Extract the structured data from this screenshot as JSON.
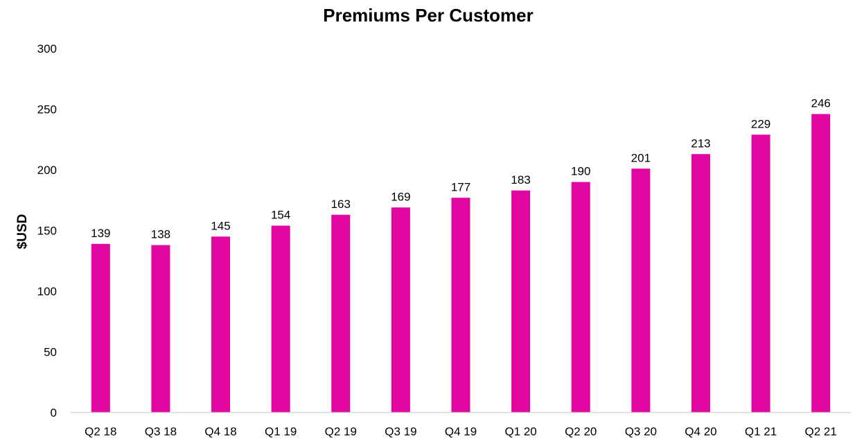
{
  "chart_data": {
    "type": "bar",
    "title": "Premiums Per Customer",
    "xlabel": "",
    "ylabel": "$USD",
    "ylim": [
      0,
      300
    ],
    "yticks": [
      0,
      50,
      100,
      150,
      200,
      250,
      300
    ],
    "grid": false,
    "legend": "none",
    "bar_color": "#E0069F",
    "categories": [
      "Q2 18",
      "Q3 18",
      "Q4 18",
      "Q1 19",
      "Q2 19",
      "Q3 19",
      "Q4 19",
      "Q1 20",
      "Q2 20",
      "Q3 20",
      "Q4 20",
      "Q1 21",
      "Q2 21"
    ],
    "values": [
      139,
      138,
      145,
      154,
      163,
      169,
      177,
      183,
      190,
      201,
      213,
      229,
      246
    ],
    "data_labels": true
  }
}
